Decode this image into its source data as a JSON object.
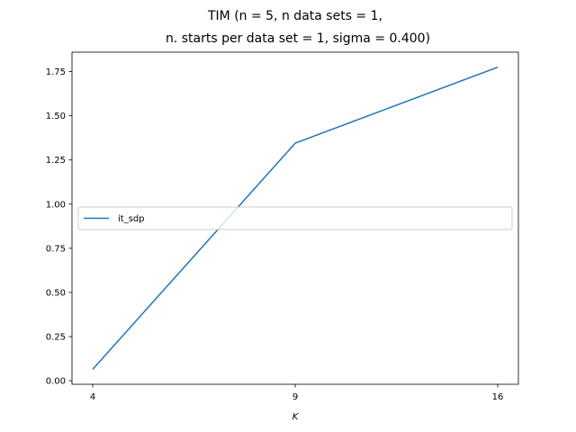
{
  "chart_data": {
    "type": "line",
    "title_line1": "TIM (n = 5, n data sets = 1,",
    "title_line2": "n. starts per data set = 1, sigma = 0.400)",
    "xlabel": "K",
    "ylabel": "",
    "x": [
      4,
      9,
      16
    ],
    "x_tick_labels": [
      "4",
      "9",
      "16"
    ],
    "categorical_x": true,
    "y_ticks": [
      0.0,
      0.25,
      0.5,
      0.75,
      1.0,
      1.25,
      1.5,
      1.75
    ],
    "y_tick_labels": [
      "0.00",
      "0.25",
      "0.50",
      "0.75",
      "1.00",
      "1.25",
      "1.50",
      "1.75"
    ],
    "ylim": [
      -0.02,
      1.86
    ],
    "grid": false,
    "legend_position": "center-left",
    "series": [
      {
        "name": "it_sdp",
        "values": [
          0.065,
          1.345,
          1.775
        ],
        "color": "#1f77b4"
      }
    ]
  }
}
